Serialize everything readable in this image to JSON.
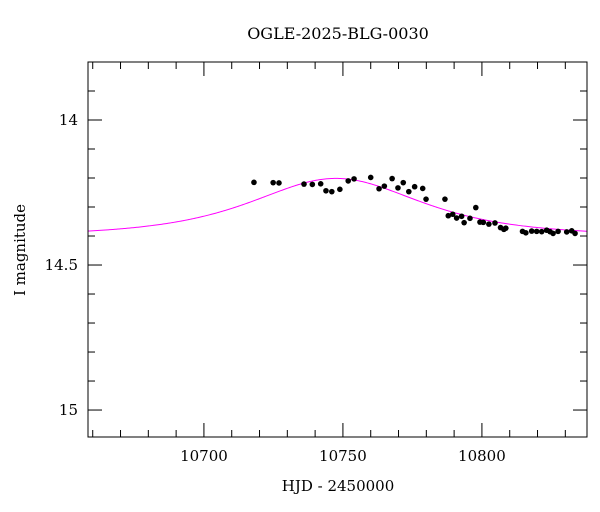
{
  "chart_data": {
    "type": "scatter",
    "title": "OGLE-2025-BLG-0030",
    "xlabel": "HJD - 2450000",
    "ylabel": "I magnitude",
    "xlim": [
      10658.3,
      10837.8
    ],
    "ylim": [
      15.093,
      13.8
    ],
    "y_inverted": true,
    "x_ticks": [
      10700,
      10750,
      10800
    ],
    "x_tick_labels": [
      "10700",
      "10750",
      "10800"
    ],
    "y_ticks": [
      14,
      14.5,
      15
    ],
    "y_tick_labels": [
      "14",
      "14.5",
      "15"
    ],
    "x_minor_step": 10,
    "y_minor_step": 0.1,
    "grid": false,
    "colors": {
      "points": "#000000",
      "model": "#ff00ff"
    },
    "series": [
      {
        "name": "data",
        "type": "scatter",
        "x": [
          10718.0,
          10724.9,
          10727.0,
          10736.0,
          10739.0,
          10742.0,
          10743.9,
          10746.0,
          10748.9,
          10751.9,
          10754.0,
          10760.0,
          10763.0,
          10764.9,
          10767.7,
          10769.8,
          10771.7,
          10773.7,
          10775.8,
          10778.7,
          10779.9,
          10786.7,
          10787.9,
          10789.5,
          10790.9,
          10792.7,
          10793.6,
          10795.7,
          10797.8,
          10799.3,
          10800.5,
          10802.5,
          10804.7,
          10806.7,
          10807.9,
          10808.6,
          10814.6,
          10815.8,
          10817.9,
          10819.7,
          10821.5,
          10823.3,
          10824.5,
          10825.6,
          10827.4,
          10830.5,
          10832.3,
          10833.5
        ],
        "y": [
          14.215,
          14.216,
          14.217,
          14.221,
          14.222,
          14.22,
          14.244,
          14.247,
          14.239,
          14.21,
          14.203,
          14.198,
          14.237,
          14.228,
          14.202,
          14.234,
          14.216,
          14.247,
          14.23,
          14.236,
          14.273,
          14.273,
          14.33,
          14.325,
          14.338,
          14.332,
          14.354,
          14.339,
          14.302,
          14.352,
          14.353,
          14.359,
          14.355,
          14.371,
          14.377,
          14.373,
          14.384,
          14.389,
          14.383,
          14.384,
          14.385,
          14.38,
          14.385,
          14.391,
          14.384,
          14.386,
          14.382,
          14.391
        ]
      },
      {
        "name": "model",
        "type": "line",
        "model": {
          "t0": 10747.5,
          "u0": 1.27,
          "tE": 32,
          "baseline_mag": 14.4
        }
      }
    ]
  }
}
